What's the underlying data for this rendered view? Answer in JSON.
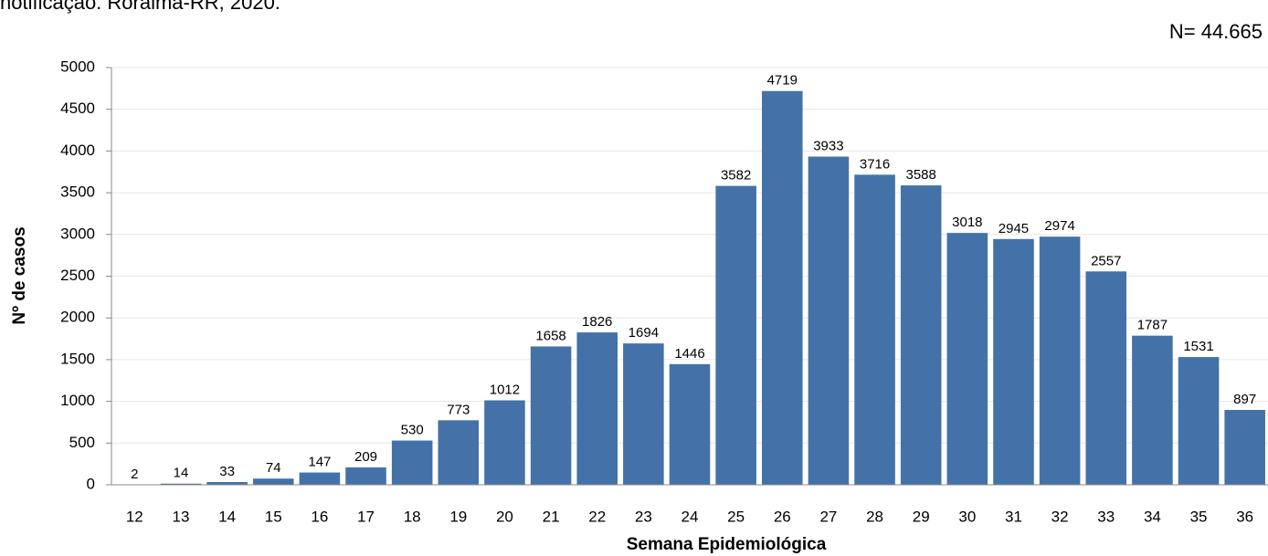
{
  "chart_data": {
    "type": "bar",
    "title": "notificação. Roraima-RR, 2020.",
    "annotation": "N= 44.665",
    "x_label": "Semana Epidemiológica",
    "y_label": "Nº de casos",
    "categories": [
      "12",
      "13",
      "14",
      "15",
      "16",
      "17",
      "18",
      "19",
      "20",
      "21",
      "22",
      "23",
      "24",
      "25",
      "26",
      "27",
      "28",
      "29",
      "30",
      "31",
      "32",
      "33",
      "34",
      "35",
      "36"
    ],
    "values": [
      2,
      14,
      33,
      74,
      147,
      209,
      530,
      773,
      1012,
      1658,
      1826,
      1694,
      1446,
      3582,
      4719,
      3933,
      3716,
      3588,
      3018,
      2945,
      2974,
      2557,
      1787,
      1531,
      897
    ],
    "color": "#4472a8",
    "ylim": [
      0,
      5000
    ],
    "yticks": [
      0,
      500,
      1000,
      1500,
      2000,
      2500,
      3000,
      3500,
      4000,
      4500,
      5000
    ],
    "grid": true
  }
}
